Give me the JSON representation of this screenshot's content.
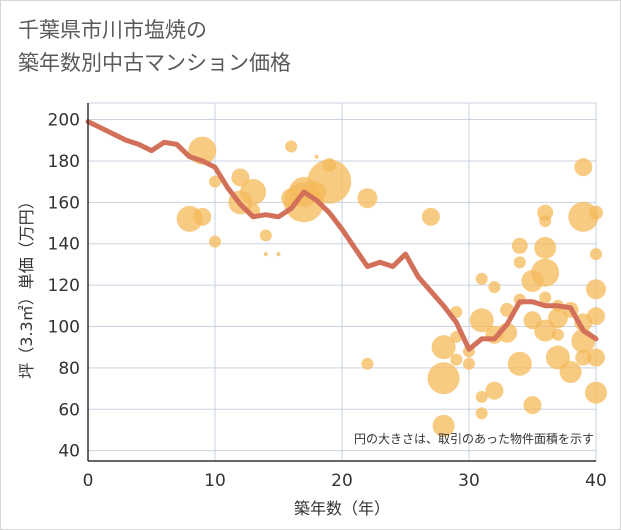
{
  "title": "千葉県市川市塩焼の\n築年数別中古マンション価格",
  "chart_data": {
    "type": "scatter",
    "xlabel": "築年数（年）",
    "ylabel": "坪（3.3㎡）単価（万円）",
    "xlim": [
      0,
      40
    ],
    "ylim": [
      35,
      208
    ],
    "xticks": [
      0,
      10,
      20,
      30,
      40
    ],
    "yticks": [
      40,
      60,
      80,
      100,
      120,
      140,
      160,
      180,
      200
    ],
    "grid": true,
    "annotation": "円の大きさは、取引のあった物件面積を示す",
    "colors": {
      "bubble": "#f5b95a",
      "line": "#d3705a",
      "grid": "#c9d3e0"
    },
    "bubbles": [
      {
        "x": 9,
        "y": 185,
        "s": 14
      },
      {
        "x": 8,
        "y": 152,
        "s": 13
      },
      {
        "x": 9,
        "y": 153,
        "s": 9
      },
      {
        "x": 10,
        "y": 170,
        "s": 6
      },
      {
        "x": 10,
        "y": 141,
        "s": 6
      },
      {
        "x": 12,
        "y": 172,
        "s": 9
      },
      {
        "x": 12,
        "y": 160,
        "s": 12
      },
      {
        "x": 13,
        "y": 165,
        "s": 13
      },
      {
        "x": 13,
        "y": 156,
        "s": 7
      },
      {
        "x": 14,
        "y": 144,
        "s": 6
      },
      {
        "x": 14,
        "y": 135,
        "s": 2
      },
      {
        "x": 15,
        "y": 135,
        "s": 2
      },
      {
        "x": 16,
        "y": 187,
        "s": 6
      },
      {
        "x": 16,
        "y": 162,
        "s": 10
      },
      {
        "x": 17,
        "y": 160,
        "s": 20
      },
      {
        "x": 17,
        "y": 165,
        "s": 15
      },
      {
        "x": 18,
        "y": 165,
        "s": 10
      },
      {
        "x": 18,
        "y": 182,
        "s": 2
      },
      {
        "x": 19,
        "y": 178,
        "s": 7
      },
      {
        "x": 19,
        "y": 170,
        "s": 22
      },
      {
        "x": 22,
        "y": 162,
        "s": 10
      },
      {
        "x": 22,
        "y": 82,
        "s": 6
      },
      {
        "x": 27,
        "y": 153,
        "s": 9
      },
      {
        "x": 28,
        "y": 90,
        "s": 12
      },
      {
        "x": 28,
        "y": 75,
        "s": 16
      },
      {
        "x": 28,
        "y": 52,
        "s": 11
      },
      {
        "x": 29,
        "y": 107,
        "s": 6
      },
      {
        "x": 29,
        "y": 95,
        "s": 6
      },
      {
        "x": 29,
        "y": 84,
        "s": 6
      },
      {
        "x": 30,
        "y": 88,
        "s": 6
      },
      {
        "x": 30,
        "y": 82,
        "s": 6
      },
      {
        "x": 31,
        "y": 123,
        "s": 6
      },
      {
        "x": 31,
        "y": 103,
        "s": 12
      },
      {
        "x": 31,
        "y": 66,
        "s": 6
      },
      {
        "x": 31,
        "y": 58,
        "s": 6
      },
      {
        "x": 32,
        "y": 119,
        "s": 6
      },
      {
        "x": 32,
        "y": 96,
        "s": 9
      },
      {
        "x": 32,
        "y": 69,
        "s": 9
      },
      {
        "x": 33,
        "y": 108,
        "s": 7
      },
      {
        "x": 33,
        "y": 97,
        "s": 10
      },
      {
        "x": 34,
        "y": 139,
        "s": 8
      },
      {
        "x": 34,
        "y": 131,
        "s": 6
      },
      {
        "x": 34,
        "y": 113,
        "s": 6
      },
      {
        "x": 34,
        "y": 82,
        "s": 12
      },
      {
        "x": 35,
        "y": 122,
        "s": 11
      },
      {
        "x": 35,
        "y": 103,
        "s": 9
      },
      {
        "x": 35,
        "y": 62,
        "s": 9
      },
      {
        "x": 36,
        "y": 155,
        "s": 8
      },
      {
        "x": 36,
        "y": 151,
        "s": 6
      },
      {
        "x": 36,
        "y": 138,
        "s": 11
      },
      {
        "x": 36,
        "y": 126,
        "s": 14
      },
      {
        "x": 36,
        "y": 114,
        "s": 6
      },
      {
        "x": 36,
        "y": 98,
        "s": 11
      },
      {
        "x": 37,
        "y": 110,
        "s": 6
      },
      {
        "x": 37,
        "y": 104,
        "s": 10
      },
      {
        "x": 37,
        "y": 96,
        "s": 6
      },
      {
        "x": 37,
        "y": 85,
        "s": 12
      },
      {
        "x": 38,
        "y": 108,
        "s": 8
      },
      {
        "x": 38,
        "y": 78,
        "s": 11
      },
      {
        "x": 39,
        "y": 177,
        "s": 9
      },
      {
        "x": 39,
        "y": 153,
        "s": 15
      },
      {
        "x": 39,
        "y": 102,
        "s": 9
      },
      {
        "x": 39,
        "y": 93,
        "s": 12
      },
      {
        "x": 39,
        "y": 85,
        "s": 8
      },
      {
        "x": 40,
        "y": 155,
        "s": 7
      },
      {
        "x": 40,
        "y": 135,
        "s": 6
      },
      {
        "x": 40,
        "y": 118,
        "s": 10
      },
      {
        "x": 40,
        "y": 105,
        "s": 9
      },
      {
        "x": 40,
        "y": 85,
        "s": 9
      },
      {
        "x": 40,
        "y": 68,
        "s": 11
      }
    ],
    "series": [
      {
        "x": [
          0,
          1,
          2,
          3,
          4,
          5,
          6,
          7,
          8,
          9,
          10,
          11,
          12,
          13,
          14,
          15,
          16,
          17,
          18,
          19,
          20,
          21,
          22,
          23,
          24,
          25,
          26,
          27,
          28,
          29,
          30,
          31,
          32,
          33,
          34,
          35,
          36,
          37,
          38,
          39,
          40
        ],
        "values": [
          199,
          196,
          193,
          190,
          188,
          185,
          189,
          188,
          182,
          180,
          177,
          167,
          159,
          153,
          154,
          153,
          157,
          165,
          161,
          155,
          147,
          138,
          129,
          131,
          129,
          135,
          124,
          117,
          110,
          102,
          89,
          94,
          94,
          101,
          112,
          112,
          110,
          110,
          109,
          98,
          94
        ]
      }
    ]
  }
}
